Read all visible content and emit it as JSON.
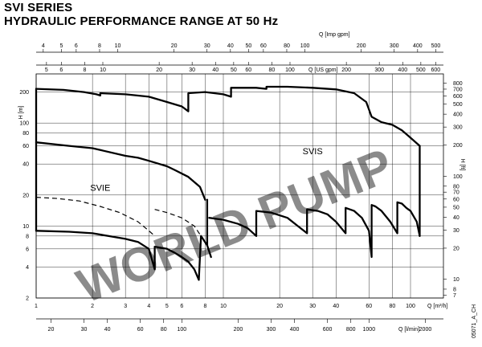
{
  "chart_data": {
    "type": "line",
    "title": "SVI SERIES",
    "subtitle": "HYDRAULIC PERFORMANCE RANGE AT 50 Hz",
    "scale": {
      "x": "log",
      "y": "log"
    },
    "grid": true,
    "footer_code": "05071_A_CH",
    "watermark": "WORLD PUMP",
    "axes": {
      "x_bottom_m3h": {
        "label": "Q [m³/h]",
        "ticks": [
          1,
          2,
          3,
          4,
          5,
          6,
          8,
          10,
          20,
          30,
          40,
          60,
          80,
          100
        ]
      },
      "x_bottom_lmin": {
        "label": "Q [l/min]",
        "ticks": [
          20,
          30,
          40,
          60,
          80,
          100,
          200,
          300,
          400,
          600,
          800,
          1000,
          2000
        ]
      },
      "x_top_impgpm": {
        "label": "Q [Imp gpm]",
        "ticks": [
          4,
          5,
          6,
          8,
          10,
          20,
          30,
          40,
          50,
          60,
          80,
          100,
          200,
          300,
          400,
          500
        ]
      },
      "x_top_usgpm": {
        "label": "Q [US gpm]",
        "ticks": [
          5,
          6,
          8,
          10,
          20,
          30,
          40,
          50,
          60,
          80,
          100,
          200,
          300,
          400,
          500,
          600
        ]
      },
      "y_left_m": {
        "label": "H [m]",
        "ticks": [
          2,
          4,
          6,
          8,
          10,
          20,
          40,
          60,
          80,
          100,
          200
        ],
        "range": [
          2,
          300
        ]
      },
      "y_right_ft": {
        "label": "H [ft]",
        "ticks": [
          7,
          8,
          10,
          20,
          30,
          40,
          50,
          60,
          70,
          80,
          100,
          200,
          300,
          400,
          500,
          600,
          700,
          800
        ]
      }
    },
    "series": [
      {
        "name": "SVIS",
        "style": "solid",
        "role": "upper-envelope",
        "points": [
          [
            1,
            215
          ],
          [
            1.4,
            210
          ],
          [
            1.8,
            200
          ],
          [
            2.1,
            190
          ],
          [
            2.2,
            185
          ],
          [
            2.2,
            195
          ],
          [
            3,
            190
          ],
          [
            4,
            180
          ],
          [
            5,
            160
          ],
          [
            6,
            145
          ],
          [
            6.5,
            130
          ],
          [
            6.5,
            195
          ],
          [
            8,
            200
          ],
          [
            10,
            190
          ],
          [
            11,
            180
          ],
          [
            11,
            220
          ],
          [
            15,
            220
          ],
          [
            17,
            215
          ],
          [
            17,
            225
          ],
          [
            22,
            225
          ],
          [
            30,
            220
          ],
          [
            40,
            212
          ],
          [
            50,
            195
          ],
          [
            58,
            160
          ],
          [
            62,
            115
          ],
          [
            70,
            102
          ],
          [
            80,
            96
          ],
          [
            90,
            85
          ],
          [
            100,
            72
          ],
          [
            112,
            60
          ]
        ]
      },
      {
        "name": "SVIS",
        "style": "solid",
        "role": "lower-sawtooth",
        "points": [
          [
            8.4,
            12
          ],
          [
            10,
            11.5
          ],
          [
            12,
            10.5
          ],
          [
            13.5,
            9.5
          ],
          [
            15,
            8
          ],
          [
            15,
            14
          ],
          [
            18,
            13.5
          ],
          [
            22,
            12
          ],
          [
            25,
            10
          ],
          [
            28,
            8.5
          ],
          [
            28,
            14.5
          ],
          [
            32,
            14
          ],
          [
            36,
            13
          ],
          [
            40,
            11
          ],
          [
            45,
            8.5
          ],
          [
            45,
            15
          ],
          [
            50,
            14
          ],
          [
            55,
            12
          ],
          [
            60,
            9
          ],
          [
            62,
            5
          ],
          [
            62,
            16
          ],
          [
            65,
            15.5
          ],
          [
            70,
            14
          ],
          [
            78,
            11
          ],
          [
            85,
            8.5
          ],
          [
            85,
            17
          ],
          [
            90,
            16.5
          ],
          [
            95,
            15
          ],
          [
            100,
            14
          ],
          [
            108,
            11
          ],
          [
            112,
            8
          ]
        ]
      },
      {
        "name": "SVIE",
        "style": "solid",
        "role": "upper-envelope",
        "points": [
          [
            1,
            65
          ],
          [
            1.5,
            60
          ],
          [
            2,
            57
          ],
          [
            3,
            48
          ],
          [
            3.5,
            46
          ],
          [
            4,
            43
          ],
          [
            5,
            38
          ],
          [
            5.5,
            35
          ],
          [
            6.5,
            30
          ],
          [
            7.5,
            24
          ],
          [
            8,
            18
          ]
        ]
      },
      {
        "name": "SVIE",
        "style": "solid",
        "role": "lower-sawtooth",
        "points": [
          [
            1,
            9
          ],
          [
            1.5,
            8.8
          ],
          [
            2,
            8.5
          ],
          [
            3,
            7.5
          ],
          [
            3.5,
            7
          ],
          [
            4,
            6
          ],
          [
            4.3,
            3.8
          ],
          [
            4.3,
            6.3
          ],
          [
            5,
            6
          ],
          [
            5.5,
            5.5
          ],
          [
            6,
            5
          ],
          [
            6.5,
            4.5
          ],
          [
            7,
            3.8
          ],
          [
            7.4,
            3
          ],
          [
            7.6,
            8
          ],
          [
            8.2,
            6.5
          ],
          [
            8.6,
            5
          ]
        ]
      },
      {
        "name": "SVIE",
        "style": "dashed",
        "role": "variant",
        "points": [
          [
            1,
            19
          ],
          [
            1.3,
            18.5
          ],
          [
            1.7,
            17.5
          ],
          [
            2.2,
            15.5
          ],
          [
            2.8,
            13.5
          ],
          [
            3.5,
            11
          ],
          [
            4,
            9
          ],
          [
            4.3,
            8
          ]
        ]
      },
      {
        "name": "SVIE",
        "style": "dashed",
        "role": "variant",
        "points": [
          [
            4.3,
            14.5
          ],
          [
            5,
            13.5
          ],
          [
            6,
            12
          ],
          [
            7,
            10
          ],
          [
            7.6,
            8
          ]
        ]
      }
    ],
    "annotations": [
      {
        "text": "SVIS",
        "x": 30,
        "y": 50
      },
      {
        "text": "SVIE",
        "x": 2.2,
        "y": 22
      }
    ]
  }
}
